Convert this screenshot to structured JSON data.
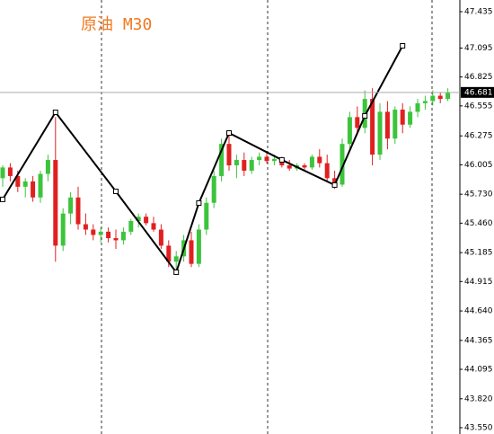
{
  "chart_data": {
    "type": "candlestick",
    "title": "原油 M30",
    "ylim": [
      43.491,
      47.544
    ],
    "yticks": [
      47.435,
      47.095,
      46.825,
      46.555,
      46.275,
      46.005,
      {
        "value": 45.73,
        "label": "45.730"
      },
      {
        "value": 45.46,
        "label": "45.460"
      },
      45.185,
      44.915,
      {
        "value": 44.64,
        "label": "44.640"
      },
      44.365,
      44.095,
      {
        "value": 43.82,
        "label": "43.820"
      },
      {
        "value": 43.55,
        "label": "43.550"
      }
    ],
    "last_price": 46.681,
    "up_color": "#3cc43c",
    "down_color": "#e02020",
    "candles": {
      "open": [
        45.88,
        45.98,
        45.9,
        45.8,
        45.85,
        45.7,
        45.92,
        46.05,
        45.25,
        45.55,
        45.7,
        45.45,
        45.4,
        45.35,
        45.38,
        45.32,
        45.3,
        45.38,
        45.48,
        45.52,
        45.46,
        45.4,
        45.25,
        45.1,
        45.15,
        45.3,
        45.08,
        45.4,
        45.65,
        45.9,
        46.2,
        46.0,
        46.05,
        45.95,
        46.05,
        46.08,
        46.04,
        46.06,
        46.0,
        45.97,
        46.0,
        45.98,
        46.08,
        46.02,
        45.88,
        45.82,
        46.2,
        46.45,
        46.35,
        46.62,
        46.1,
        46.5,
        46.25,
        46.52,
        46.38,
        46.5,
        46.58,
        46.6,
        46.65,
        46.62
      ],
      "high": [
        46.0,
        46.02,
        45.95,
        45.88,
        45.9,
        45.95,
        46.1,
        46.45,
        45.6,
        45.75,
        45.8,
        45.55,
        45.45,
        45.42,
        45.42,
        45.4,
        45.42,
        45.5,
        45.55,
        45.55,
        45.52,
        45.45,
        45.3,
        45.2,
        45.35,
        45.38,
        45.45,
        45.7,
        45.95,
        46.25,
        46.28,
        46.1,
        46.12,
        46.08,
        46.12,
        46.12,
        46.1,
        46.08,
        46.05,
        46.02,
        46.02,
        46.1,
        46.15,
        46.1,
        45.95,
        46.25,
        46.5,
        46.55,
        46.7,
        46.72,
        46.58,
        46.6,
        46.55,
        46.58,
        46.55,
        46.62,
        46.65,
        46.7,
        46.68,
        46.72
      ],
      "low": [
        45.8,
        45.85,
        45.75,
        45.7,
        45.66,
        45.65,
        45.85,
        45.1,
        45.2,
        45.45,
        45.4,
        45.35,
        45.3,
        45.28,
        45.28,
        45.22,
        45.26,
        45.35,
        45.42,
        45.44,
        45.38,
        45.22,
        45.05,
        44.98,
        45.1,
        45.05,
        45.05,
        45.35,
        45.6,
        45.85,
        45.95,
        45.88,
        45.9,
        45.92,
        46.0,
        46.02,
        46.0,
        45.98,
        45.95,
        45.95,
        45.96,
        45.96,
        45.98,
        45.85,
        45.78,
        45.8,
        46.15,
        46.3,
        46.3,
        46.0,
        46.05,
        46.15,
        46.2,
        46.3,
        46.35,
        46.45,
        46.52,
        46.56,
        46.58,
        46.6
      ],
      "close": [
        45.98,
        45.9,
        45.8,
        45.85,
        45.7,
        45.92,
        46.05,
        45.25,
        45.55,
        45.7,
        45.45,
        45.4,
        45.35,
        45.38,
        45.32,
        45.3,
        45.38,
        45.48,
        45.52,
        45.46,
        45.4,
        45.25,
        45.1,
        45.15,
        45.3,
        45.08,
        45.4,
        45.65,
        45.9,
        46.2,
        46.0,
        46.05,
        45.95,
        46.05,
        46.08,
        46.04,
        46.06,
        46.0,
        45.97,
        46.0,
        45.98,
        46.08,
        46.02,
        45.88,
        45.82,
        46.2,
        46.45,
        46.35,
        46.62,
        46.1,
        46.5,
        46.25,
        46.52,
        46.38,
        46.5,
        46.58,
        46.6,
        46.65,
        46.62,
        46.68
      ]
    },
    "zigzag": {
      "x": [
        0,
        7,
        15,
        23,
        26,
        30,
        37,
        44,
        48,
        53
      ],
      "values": [
        45.682,
        46.495,
        45.757,
        45.002,
        45.648,
        46.302,
        46.051,
        45.816,
        46.462,
        47.116
      ]
    }
  }
}
